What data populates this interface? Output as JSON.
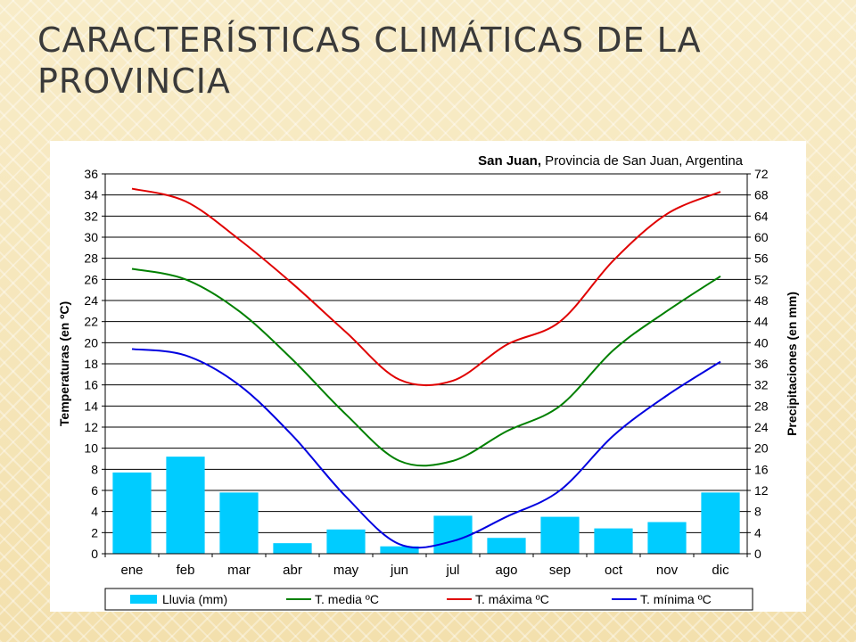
{
  "slide": {
    "title": "CARACTERÍSTICAS CLIMÁTICAS DE LA PROVINCIA"
  },
  "chart_data": {
    "type": "bar+line",
    "title_bold": "San Juan,",
    "title_rest": " Provincia de San Juan, Argentina",
    "ylabel_left": "Temperaturas (en ºC)",
    "ylabel_right": "Precipitaciones (en mm)",
    "ylim_left": [
      0,
      36
    ],
    "yticks_left": [
      0,
      2,
      4,
      6,
      8,
      10,
      12,
      14,
      16,
      18,
      20,
      22,
      24,
      26,
      28,
      30,
      32,
      34,
      36
    ],
    "ylim_right": [
      0,
      72
    ],
    "yticks_right": [
      0,
      4,
      8,
      12,
      16,
      20,
      24,
      28,
      32,
      36,
      40,
      44,
      48,
      52,
      56,
      60,
      64,
      68,
      72
    ],
    "grid": true,
    "legend_position": "bottom",
    "categories": [
      "ene",
      "feb",
      "mar",
      "abr",
      "may",
      "jun",
      "jul",
      "ago",
      "sep",
      "oct",
      "nov",
      "dic"
    ],
    "bars": {
      "name": "Lluvia (mm)",
      "axis": "right",
      "color": "#00ccff",
      "values": [
        15.4,
        18.4,
        11.6,
        2.0,
        4.6,
        1.4,
        7.2,
        3.0,
        7.0,
        4.8,
        6.0,
        11.6
      ]
    },
    "series": [
      {
        "name": "T. media ºC",
        "axis": "left",
        "color": "#008000",
        "values": [
          27.0,
          26.0,
          23.0,
          18.4,
          13.2,
          8.8,
          8.8,
          11.6,
          14.0,
          19.3,
          23.0,
          26.3
        ]
      },
      {
        "name": "T. máxima ºC",
        "axis": "left",
        "color": "#e00000",
        "values": [
          34.6,
          33.4,
          29.8,
          25.6,
          21.0,
          16.5,
          16.4,
          19.8,
          22.0,
          27.8,
          32.2,
          34.3
        ]
      },
      {
        "name": "T. mínima ºC",
        "axis": "left",
        "color": "#0000e0",
        "values": [
          19.4,
          18.8,
          16.0,
          11.2,
          5.4,
          0.9,
          1.2,
          3.5,
          6.0,
          11.2,
          15.0,
          18.2
        ]
      }
    ]
  }
}
